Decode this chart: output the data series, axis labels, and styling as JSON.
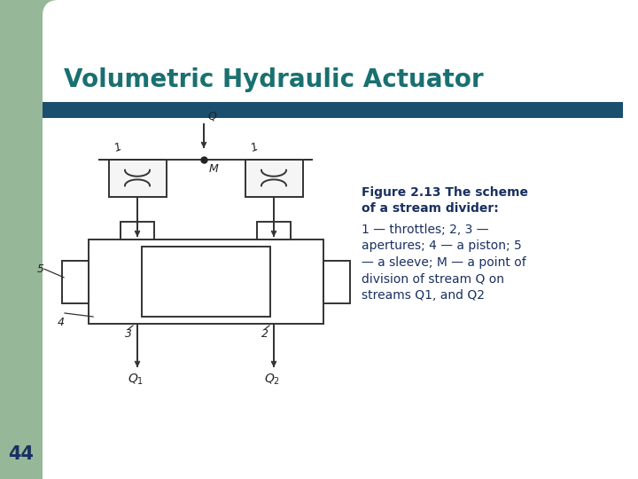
{
  "title": "Volumetric Hydraulic Actuator",
  "title_color": "#1a7070",
  "title_fontsize": 20,
  "bar_color": "#1a4f6e",
  "bg_color": "#ffffff",
  "green_color": "#96b899",
  "page_number": "44",
  "caption_bold": "Figure 2.13 The scheme\nof a stream divider:",
  "caption_normal": "1 — throttles; 2, 3 —\napertures; 4 — a piston; 5\n— a sleeve; M — a point of\ndivision of stream Q on\nstreams Q1, and Q2",
  "caption_color": "#1a3060",
  "caption_fontsize": 10.0,
  "lc": "#333333",
  "lw": 1.4
}
